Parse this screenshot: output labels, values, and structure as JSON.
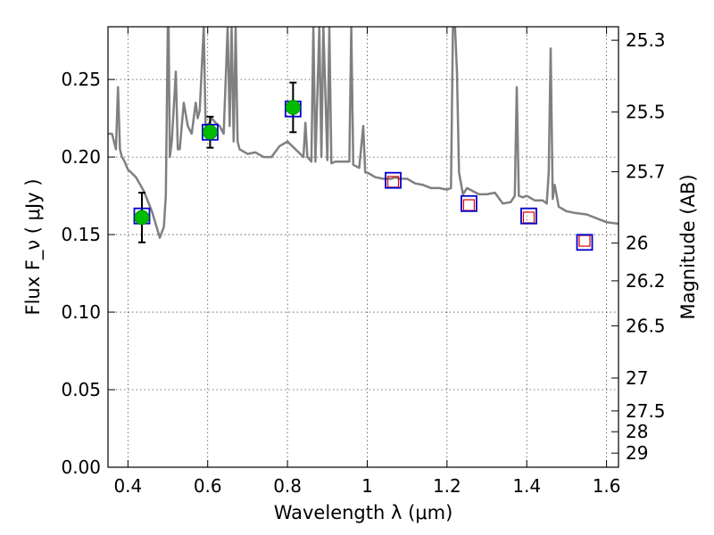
{
  "chart_data": {
    "type": "line",
    "xlabel": "Wavelength  λ (μm)",
    "ylabel": "Flux  F_ν  ( μJy )",
    "ylabel_right": "Magnitude (AB)",
    "xlim": [
      0.35,
      1.63
    ],
    "ylim": [
      0.0,
      0.284
    ],
    "grid": true,
    "x_ticks": [
      0.4,
      0.6,
      0.8,
      1.0,
      1.2,
      1.4,
      1.6
    ],
    "x_tick_labels": [
      "0.4",
      "0.6",
      "0.8",
      "1",
      "1.2",
      "1.4",
      "1.6"
    ],
    "y_ticks": [
      0.0,
      0.05,
      0.1,
      0.15,
      0.2,
      0.25
    ],
    "y_tick_labels": [
      "0.00",
      "0.05",
      "0.10",
      "0.15",
      "0.20",
      "0.25"
    ],
    "right_ticks": [
      {
        "flux": 0.2753,
        "label": "25.3"
      },
      {
        "flux": 0.229,
        "label": "25.5"
      },
      {
        "flux": 0.1905,
        "label": "25.7"
      },
      {
        "flux": 0.1445,
        "label": "26"
      },
      {
        "flux": 0.1202,
        "label": "26.2"
      },
      {
        "flux": 0.0912,
        "label": "26.5"
      },
      {
        "flux": 0.0575,
        "label": "27"
      },
      {
        "flux": 0.0363,
        "label": "27.5"
      },
      {
        "flux": 0.0229,
        "label": "28"
      },
      {
        "flux": 0.0091,
        "label": "29"
      }
    ],
    "series": [
      {
        "kind": "spectrum",
        "color": "#808080",
        "x": [
          0.35,
          0.36,
          0.37,
          0.375,
          0.38,
          0.385,
          0.39,
          0.4,
          0.42,
          0.44,
          0.46,
          0.48,
          0.49,
          0.495,
          0.5,
          0.502,
          0.505,
          0.51,
          0.52,
          0.525,
          0.53,
          0.54,
          0.55,
          0.56,
          0.57,
          0.575,
          0.58,
          0.59,
          0.595,
          0.6,
          0.61,
          0.62,
          0.63,
          0.64,
          0.65,
          0.655,
          0.66,
          0.665,
          0.67,
          0.675,
          0.68,
          0.7,
          0.72,
          0.74,
          0.76,
          0.78,
          0.8,
          0.82,
          0.84,
          0.845,
          0.85,
          0.86,
          0.865,
          0.87,
          0.88,
          0.885,
          0.89,
          0.9,
          0.905,
          0.91,
          0.92,
          0.94,
          0.955,
          0.96,
          0.965,
          0.98,
          0.99,
          0.995,
          1.0,
          1.02,
          1.04,
          1.06,
          1.07,
          1.08,
          1.1,
          1.12,
          1.14,
          1.16,
          1.18,
          1.2,
          1.21,
          1.215,
          1.22,
          1.225,
          1.23,
          1.24,
          1.25,
          1.28,
          1.3,
          1.32,
          1.34,
          1.36,
          1.37,
          1.375,
          1.38,
          1.39,
          1.4,
          1.42,
          1.44,
          1.45,
          1.455,
          1.46,
          1.465,
          1.47,
          1.48,
          1.5,
          1.52,
          1.55,
          1.58,
          1.6,
          1.63
        ],
        "y": [
          0.215,
          0.215,
          0.205,
          0.245,
          0.205,
          0.2,
          0.198,
          0.192,
          0.187,
          0.178,
          0.165,
          0.148,
          0.155,
          0.175,
          0.284,
          0.284,
          0.2,
          0.21,
          0.255,
          0.205,
          0.205,
          0.235,
          0.22,
          0.215,
          0.235,
          0.225,
          0.23,
          0.284,
          0.215,
          0.22,
          0.225,
          0.222,
          0.22,
          0.215,
          0.284,
          0.22,
          0.284,
          0.21,
          0.284,
          0.21,
          0.205,
          0.202,
          0.203,
          0.2,
          0.2,
          0.207,
          0.21,
          0.205,
          0.2,
          0.222,
          0.2,
          0.197,
          0.284,
          0.197,
          0.284,
          0.2,
          0.284,
          0.198,
          0.284,
          0.196,
          0.197,
          0.197,
          0.197,
          0.284,
          0.195,
          0.193,
          0.22,
          0.19,
          0.19,
          0.187,
          0.186,
          0.186,
          0.187,
          0.186,
          0.186,
          0.183,
          0.182,
          0.18,
          0.18,
          0.179,
          0.18,
          0.284,
          0.284,
          0.255,
          0.19,
          0.176,
          0.18,
          0.176,
          0.176,
          0.177,
          0.17,
          0.171,
          0.175,
          0.245,
          0.175,
          0.174,
          0.175,
          0.172,
          0.172,
          0.17,
          0.19,
          0.27,
          0.173,
          0.182,
          0.168,
          0.165,
          0.164,
          0.163,
          0.16,
          0.158,
          0.157
        ]
      },
      {
        "kind": "photometry-green",
        "color": "#00bb00",
        "x": [
          0.435,
          0.606,
          0.814
        ],
        "y": [
          0.161,
          0.216,
          0.232
        ],
        "yerr": [
          0.016,
          0.01,
          0.016
        ]
      },
      {
        "kind": "model-blue-squares",
        "color": "#0000cc",
        "x": [
          0.435,
          0.606,
          0.814,
          1.065,
          1.255,
          1.405,
          1.545
        ],
        "y": [
          0.162,
          0.216,
          0.231,
          0.185,
          0.17,
          0.162,
          0.145
        ]
      },
      {
        "kind": "model-red-squares",
        "color": "#dd0000",
        "x": [
          1.065,
          1.255,
          1.405,
          1.545
        ],
        "y": [
          0.184,
          0.169,
          0.161,
          0.146
        ]
      }
    ]
  }
}
